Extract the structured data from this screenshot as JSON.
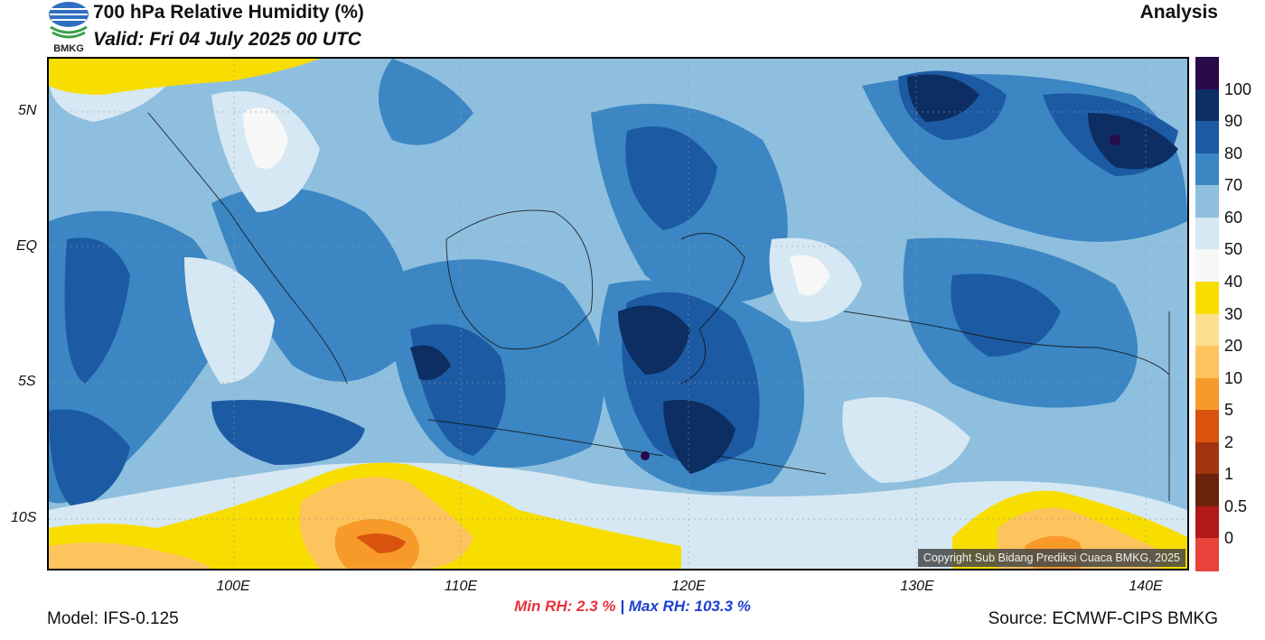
{
  "header": {
    "logo_text": "BMKG",
    "title": "700 hPa Relative Humidity (%)",
    "valid": "Valid: Fri 04 July 2025 00 UTC",
    "analysis": "Analysis"
  },
  "map": {
    "lat_labels": [
      "5N",
      "EQ",
      "5S",
      "10S"
    ],
    "lon_labels": [
      "100E",
      "110E",
      "120E",
      "130E",
      "140E"
    ],
    "copyright": "Copyright Sub Bidang Prediksi Cuaca BMKG, 2025"
  },
  "colorbar": {
    "labels": [
      "100",
      "90",
      "80",
      "70",
      "60",
      "50",
      "40",
      "30",
      "20",
      "10",
      "5",
      "2",
      "1",
      "0.5",
      "0"
    ],
    "colors": [
      "#2a0b4a",
      "#0c2e63",
      "#1d5aa4",
      "#3b86c3",
      "#8ebfdf",
      "#d6e8f3",
      "#f7f7f7",
      "#f7dd00",
      "#fbe18f",
      "#fdc45d",
      "#f89a2a",
      "#d9530e",
      "#a23410",
      "#6a230d",
      "#b21818",
      "#e8423a"
    ]
  },
  "stats": {
    "min_label": "Min RH:",
    "min_value": "2.3 %",
    "separator": "|",
    "max_label": "Max RH:",
    "max_value": "103.3 %"
  },
  "footer": {
    "model": "Model: IFS-0.125",
    "source": "Source: ECMWF-CIPS BMKG"
  }
}
